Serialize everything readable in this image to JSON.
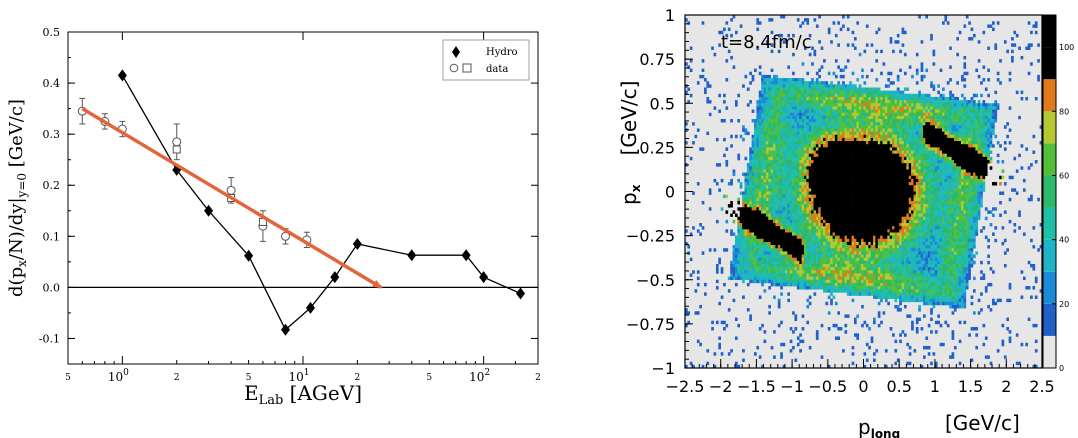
{
  "chart_data": [
    {
      "type": "scatter",
      "xscale": "log",
      "xlabel_main": "E",
      "xlabel_sub": "Lab",
      "xlabel_unit": " [AGeV]",
      "ylabel": "d(p<sub>x</sub>/N)/dy|<sub>y=0</sub> [GeV/c]",
      "ylabel_parts": {
        "a": "d(p",
        "b": "x",
        "c": "/N)/dy|",
        "d": "y=0",
        "e": " [GeV/c]"
      },
      "xlim": [
        0.5,
        200
      ],
      "ylim": [
        -0.15,
        0.5
      ],
      "xticks_major": [
        {
          "value": 1,
          "base": "10",
          "exp": "0"
        },
        {
          "value": 10,
          "base": "10",
          "exp": "1"
        },
        {
          "value": 100,
          "base": "10",
          "exp": "2"
        }
      ],
      "xticks_minor": [
        {
          "value": 0.5,
          "label": "5"
        },
        {
          "value": 2,
          "label": "2"
        },
        {
          "value": 5,
          "label": "5"
        },
        {
          "value": 20,
          "label": "2"
        },
        {
          "value": 50,
          "label": "5"
        },
        {
          "value": 200,
          "label": "2"
        }
      ],
      "yticks": [
        {
          "value": -0.1,
          "label": "-0.1"
        },
        {
          "value": 0.0,
          "label": "0.0"
        },
        {
          "value": 0.1,
          "label": "0.1"
        },
        {
          "value": 0.2,
          "label": "0.2"
        },
        {
          "value": 0.3,
          "label": "0.3"
        },
        {
          "value": 0.4,
          "label": "0.4"
        },
        {
          "value": 0.5,
          "label": "0.5"
        }
      ],
      "legend": {
        "placement": "top-right",
        "hydro": "Hydro",
        "data": "data"
      },
      "series": [
        {
          "name": "Hydro",
          "marker": "diamond",
          "connected": true,
          "points": [
            [
              1.0,
              0.415
            ],
            [
              2.0,
              0.23
            ],
            [
              3.0,
              0.15
            ],
            [
              5.0,
              0.062
            ],
            [
              8.0,
              -0.083
            ],
            [
              11.0,
              -0.04
            ],
            [
              15.0,
              0.02
            ],
            [
              20.0,
              0.085
            ],
            [
              40.0,
              0.063
            ],
            [
              80.0,
              0.063
            ],
            [
              100.0,
              0.02
            ],
            [
              160.0,
              -0.012
            ]
          ]
        },
        {
          "name": "data",
          "marker": "circle",
          "points": [
            [
              0.6,
              0.345,
              0.025
            ],
            [
              0.8,
              0.325,
              0.015
            ],
            [
              1.0,
              0.31,
              0.015
            ],
            [
              2.0,
              0.285,
              0.035
            ],
            [
              4.0,
              0.19,
              0.025
            ],
            [
              6.0,
              0.12,
              0.03
            ],
            [
              8.0,
              0.1,
              0.015
            ],
            [
              10.5,
              0.093,
              0.015
            ]
          ]
        },
        {
          "name": "data",
          "marker": "square",
          "points": [
            [
              2.0,
              0.27
            ],
            [
              4.0,
              0.175
            ],
            [
              6.0,
              0.128
            ]
          ]
        }
      ],
      "annotations": [
        {
          "type": "arrow",
          "color": "#e5633a",
          "from": [
            0.6,
            0.35
          ],
          "to": [
            27,
            0.0
          ]
        }
      ],
      "horizontal_line": 0.0
    },
    {
      "type": "heatmap",
      "annotation": "t=8.4fm/c",
      "xlabel_main": "p",
      "xlabel_sub": "long",
      "xlabel_unit": "[GeV/c]",
      "ylabel_main": "p",
      "ylabel_sub": "x",
      "ylabel_unit": "[GeV/c]",
      "xlim": [
        -2.5,
        2.5
      ],
      "ylim": [
        -1,
        1
      ],
      "xticks": [
        {
          "value": -2.5,
          "label": "−2.5"
        },
        {
          "value": -2,
          "label": "−2"
        },
        {
          "value": -1.5,
          "label": "−1.5"
        },
        {
          "value": -1,
          "label": "−1"
        },
        {
          "value": -0.5,
          "label": "−0.5"
        },
        {
          "value": 0,
          "label": "0"
        },
        {
          "value": 0.5,
          "label": "0.5"
        },
        {
          "value": 1,
          "label": "1"
        },
        {
          "value": 1.5,
          "label": "1.5"
        },
        {
          "value": 2,
          "label": "2"
        },
        {
          "value": 2.5,
          "label": "2.5"
        }
      ],
      "yticks": [
        {
          "value": -1,
          "label": "−1"
        },
        {
          "value": -0.75,
          "label": "−0.75"
        },
        {
          "value": -0.5,
          "label": "−0.5"
        },
        {
          "value": -0.25,
          "label": "−0.25"
        },
        {
          "value": 0,
          "label": "0"
        },
        {
          "value": 0.25,
          "label": "0.25"
        },
        {
          "value": 0.5,
          "label": "0.5"
        },
        {
          "value": 0.75,
          "label": "0.75"
        },
        {
          "value": 1,
          "label": "1"
        }
      ],
      "colorbar": {
        "range": [
          0,
          110
        ],
        "ticks": [
          {
            "value": 0,
            "label": "0"
          },
          {
            "value": 20,
            "label": "20"
          },
          {
            "value": 40,
            "label": "40"
          },
          {
            "value": 60,
            "label": "60"
          },
          {
            "value": 80,
            "label": "80"
          },
          {
            "value": 100,
            "label": "100"
          }
        ],
        "bands": [
          {
            "from": 0,
            "to": 10,
            "color": "#e6e6e6"
          },
          {
            "from": 10,
            "to": 20,
            "color": "#2060c8"
          },
          {
            "from": 20,
            "to": 30,
            "color": "#1b8bd8"
          },
          {
            "from": 30,
            "to": 40,
            "color": "#1fb3c8"
          },
          {
            "from": 40,
            "to": 50,
            "color": "#20c0a8"
          },
          {
            "from": 50,
            "to": 60,
            "color": "#2db86a"
          },
          {
            "from": 60,
            "to": 70,
            "color": "#52c03a"
          },
          {
            "from": 70,
            "to": 80,
            "color": "#b4c832"
          },
          {
            "from": 80,
            "to": 90,
            "color": "#e07a1a"
          },
          {
            "from": 90,
            "to": 100,
            "color": "#000000"
          },
          {
            "from": 100,
            "to": 110,
            "color": "#000000"
          }
        ]
      },
      "background": "#e6e6e6"
    }
  ]
}
